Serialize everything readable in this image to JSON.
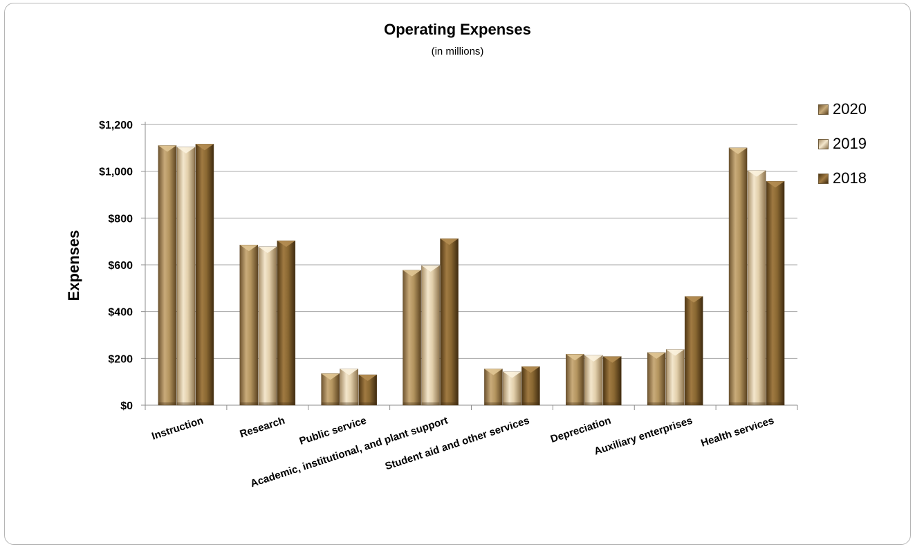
{
  "chart_data": {
    "type": "bar",
    "title": "Operating Expenses",
    "subtitle": "(in millions)",
    "ylabel": "Expenses",
    "xlabel": "",
    "ylim": [
      0,
      1200
    ],
    "yticks": [
      "$0",
      "$200",
      "$400",
      "$600",
      "$800",
      "$1,000",
      "$1,200"
    ],
    "ytick_values": [
      0,
      200,
      400,
      600,
      800,
      1000,
      1200
    ],
    "categories": [
      "Instruction",
      "Research",
      "Public service",
      "Academic, institutional, and plant support",
      "Student aid and other services",
      "Depreciation",
      "Auxiliary enterprises",
      "Health services"
    ],
    "series": [
      {
        "name": "2020",
        "color": "#a88a5c",
        "values": [
          1110,
          685,
          135,
          577,
          155,
          218,
          225,
          1100
        ]
      },
      {
        "name": "2019",
        "color": "#dcc7a3",
        "values": [
          1103,
          677,
          155,
          597,
          143,
          213,
          238,
          1003
        ]
      },
      {
        "name": "2018",
        "color": "#7e5f30",
        "values": [
          1116,
          703,
          130,
          712,
          165,
          208,
          465,
          957
        ]
      }
    ],
    "grid": true,
    "legend_position": "right"
  }
}
